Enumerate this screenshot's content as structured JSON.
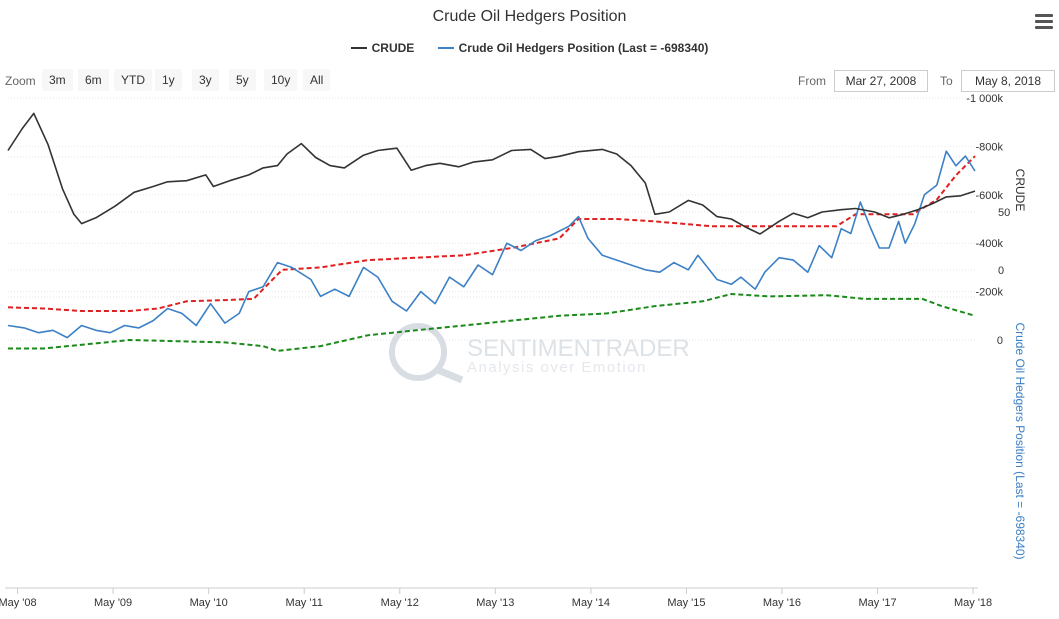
{
  "title": "Crude Oil Hedgers Position",
  "legend": [
    {
      "name": "CRUDE",
      "color": "#333333"
    },
    {
      "name": "Crude Oil Hedgers Position (Last = -698340)",
      "color": "#3c80c6"
    }
  ],
  "zoom": {
    "label": "Zoom",
    "buttons": [
      "3m",
      "6m",
      "YTD",
      "1y",
      "3y",
      "5y",
      "10y",
      "All"
    ]
  },
  "range": {
    "from_label": "From",
    "from_value": "Mar 27, 2008",
    "to_label": "To",
    "to_value": "May 8, 2018"
  },
  "watermark": {
    "brand": "SENTIMENTRADER",
    "tagline": "Analysis over Emotion"
  },
  "colors": {
    "crude": "#333333",
    "hedgers": "#3c80c6",
    "upper_band": "#1a8a1a",
    "lower_band": "#e02020",
    "grid": "#e6e6e6"
  },
  "chart_data": [
    {
      "type": "line",
      "series": [
        {
          "name": "CRUDE"
        }
      ],
      "ylabel": "CRUDE",
      "yticks": [
        0,
        50
      ],
      "ylim": [
        0,
        150
      ],
      "x_tick_labels": [
        "May '08",
        "May '09",
        "May '10",
        "May '11",
        "May '12",
        "May '13",
        "May '14",
        "May '15",
        "May '16",
        "May '17",
        "May '18"
      ],
      "x_range": [
        2008.23,
        2018.35
      ],
      "points": [
        [
          2008.23,
          103
        ],
        [
          2008.38,
          122
        ],
        [
          2008.5,
          135
        ],
        [
          2008.65,
          108
        ],
        [
          2008.8,
          70
        ],
        [
          2008.92,
          48
        ],
        [
          2009.0,
          40
        ],
        [
          2009.15,
          45
        ],
        [
          2009.35,
          55
        ],
        [
          2009.55,
          67
        ],
        [
          2009.75,
          72
        ],
        [
          2009.9,
          76
        ],
        [
          2010.1,
          77
        ],
        [
          2010.3,
          82
        ],
        [
          2010.38,
          72
        ],
        [
          2010.55,
          77
        ],
        [
          2010.75,
          82
        ],
        [
          2010.9,
          88
        ],
        [
          2011.05,
          90
        ],
        [
          2011.15,
          100
        ],
        [
          2011.3,
          109
        ],
        [
          2011.45,
          97
        ],
        [
          2011.6,
          90
        ],
        [
          2011.75,
          88
        ],
        [
          2011.95,
          99
        ],
        [
          2012.1,
          103
        ],
        [
          2012.3,
          105
        ],
        [
          2012.45,
          86
        ],
        [
          2012.6,
          90
        ],
        [
          2012.75,
          92
        ],
        [
          2012.95,
          89
        ],
        [
          2013.1,
          93
        ],
        [
          2013.3,
          95
        ],
        [
          2013.5,
          103
        ],
        [
          2013.7,
          104
        ],
        [
          2013.85,
          96
        ],
        [
          2014.0,
          98
        ],
        [
          2014.2,
          102
        ],
        [
          2014.45,
          104
        ],
        [
          2014.6,
          100
        ],
        [
          2014.75,
          90
        ],
        [
          2014.9,
          75
        ],
        [
          2015.0,
          48
        ],
        [
          2015.15,
          50
        ],
        [
          2015.35,
          60
        ],
        [
          2015.5,
          56
        ],
        [
          2015.65,
          46
        ],
        [
          2015.8,
          44
        ],
        [
          2015.95,
          37
        ],
        [
          2016.1,
          31
        ],
        [
          2016.3,
          42
        ],
        [
          2016.45,
          49
        ],
        [
          2016.6,
          45
        ],
        [
          2016.75,
          50
        ],
        [
          2016.95,
          52
        ],
        [
          2017.1,
          53
        ],
        [
          2017.3,
          50
        ],
        [
          2017.45,
          45
        ],
        [
          2017.6,
          48
        ],
        [
          2017.75,
          52
        ],
        [
          2017.9,
          57
        ],
        [
          2018.05,
          63
        ],
        [
          2018.2,
          64
        ],
        [
          2018.35,
          68
        ]
      ]
    },
    {
      "type": "line",
      "series": [
        {
          "name": "Crude Oil Hedgers Position (Last = -698340)"
        }
      ],
      "ylabel": "Crude Oil Hedgers Position (Last = -698340)",
      "yticks": [
        0,
        -200000,
        -400000,
        -600000,
        -800000,
        -1000000
      ],
      "ytick_labels": [
        "0",
        "-200k",
        "-400k",
        "-600k",
        "-800k",
        "-1 000k"
      ],
      "ylim": [
        -1000000,
        100000
      ],
      "x_range": [
        2008.23,
        2018.35
      ],
      "hedgers": [
        [
          2008.23,
          -60000
        ],
        [
          2008.4,
          -50000
        ],
        [
          2008.55,
          -30000
        ],
        [
          2008.7,
          -40000
        ],
        [
          2008.85,
          -10000
        ],
        [
          2009.0,
          -60000
        ],
        [
          2009.15,
          -40000
        ],
        [
          2009.3,
          -30000
        ],
        [
          2009.45,
          -60000
        ],
        [
          2009.6,
          -50000
        ],
        [
          2009.75,
          -80000
        ],
        [
          2009.9,
          -130000
        ],
        [
          2010.05,
          -110000
        ],
        [
          2010.2,
          -60000
        ],
        [
          2010.35,
          -150000
        ],
        [
          2010.5,
          -70000
        ],
        [
          2010.65,
          -110000
        ],
        [
          2010.75,
          -200000
        ],
        [
          2010.9,
          -220000
        ],
        [
          2011.05,
          -320000
        ],
        [
          2011.2,
          -300000
        ],
        [
          2011.4,
          -250000
        ],
        [
          2011.5,
          -180000
        ],
        [
          2011.65,
          -210000
        ],
        [
          2011.8,
          -180000
        ],
        [
          2011.95,
          -300000
        ],
        [
          2012.1,
          -260000
        ],
        [
          2012.25,
          -160000
        ],
        [
          2012.4,
          -120000
        ],
        [
          2012.55,
          -200000
        ],
        [
          2012.7,
          -150000
        ],
        [
          2012.85,
          -260000
        ],
        [
          2013.0,
          -220000
        ],
        [
          2013.15,
          -310000
        ],
        [
          2013.3,
          -270000
        ],
        [
          2013.45,
          -400000
        ],
        [
          2013.6,
          -370000
        ],
        [
          2013.75,
          -410000
        ],
        [
          2013.9,
          -430000
        ],
        [
          2014.1,
          -470000
        ],
        [
          2014.2,
          -510000
        ],
        [
          2014.3,
          -420000
        ],
        [
          2014.45,
          -350000
        ],
        [
          2014.6,
          -330000
        ],
        [
          2014.75,
          -310000
        ],
        [
          2014.9,
          -290000
        ],
        [
          2015.05,
          -280000
        ],
        [
          2015.2,
          -320000
        ],
        [
          2015.35,
          -290000
        ],
        [
          2015.45,
          -350000
        ],
        [
          2015.55,
          -300000
        ],
        [
          2015.65,
          -250000
        ],
        [
          2015.8,
          -230000
        ],
        [
          2015.9,
          -260000
        ],
        [
          2016.05,
          -210000
        ],
        [
          2016.15,
          -280000
        ],
        [
          2016.3,
          -340000
        ],
        [
          2016.45,
          -330000
        ],
        [
          2016.6,
          -280000
        ],
        [
          2016.72,
          -390000
        ],
        [
          2016.85,
          -340000
        ],
        [
          2016.95,
          -460000
        ],
        [
          2017.05,
          -440000
        ],
        [
          2017.15,
          -570000
        ],
        [
          2017.25,
          -470000
        ],
        [
          2017.35,
          -380000
        ],
        [
          2017.45,
          -380000
        ],
        [
          2017.55,
          -490000
        ],
        [
          2017.62,
          -400000
        ],
        [
          2017.72,
          -480000
        ],
        [
          2017.82,
          -600000
        ],
        [
          2017.95,
          -640000
        ],
        [
          2018.05,
          -780000
        ],
        [
          2018.15,
          -720000
        ],
        [
          2018.25,
          -760000
        ],
        [
          2018.35,
          -698340
        ]
      ],
      "upper_band": [
        [
          2008.23,
          35000
        ],
        [
          2008.6,
          35000
        ],
        [
          2009.0,
          20000
        ],
        [
          2009.5,
          0
        ],
        [
          2010.0,
          5000
        ],
        [
          2010.5,
          10000
        ],
        [
          2010.9,
          25000
        ],
        [
          2011.05,
          45000
        ],
        [
          2011.5,
          25000
        ],
        [
          2012.0,
          -20000
        ],
        [
          2012.5,
          -40000
        ],
        [
          2013.0,
          -60000
        ],
        [
          2013.5,
          -80000
        ],
        [
          2014.0,
          -100000
        ],
        [
          2014.5,
          -110000
        ],
        [
          2015.0,
          -140000
        ],
        [
          2015.5,
          -160000
        ],
        [
          2015.8,
          -190000
        ],
        [
          2016.2,
          -180000
        ],
        [
          2016.8,
          -185000
        ],
        [
          2017.2,
          -170000
        ],
        [
          2017.8,
          -170000
        ],
        [
          2018.0,
          -140000
        ],
        [
          2018.35,
          -100000
        ]
      ],
      "lower_band": [
        [
          2008.23,
          -135000
        ],
        [
          2008.6,
          -130000
        ],
        [
          2009.0,
          -120000
        ],
        [
          2009.5,
          -120000
        ],
        [
          2009.8,
          -130000
        ],
        [
          2010.1,
          -160000
        ],
        [
          2010.5,
          -165000
        ],
        [
          2010.8,
          -170000
        ],
        [
          2011.1,
          -290000
        ],
        [
          2011.5,
          -300000
        ],
        [
          2012.0,
          -330000
        ],
        [
          2012.5,
          -340000
        ],
        [
          2013.0,
          -350000
        ],
        [
          2013.5,
          -380000
        ],
        [
          2014.0,
          -420000
        ],
        [
          2014.2,
          -500000
        ],
        [
          2014.6,
          -500000
        ],
        [
          2015.0,
          -490000
        ],
        [
          2015.6,
          -470000
        ],
        [
          2016.2,
          -470000
        ],
        [
          2016.6,
          -470000
        ],
        [
          2016.9,
          -470000
        ],
        [
          2017.1,
          -520000
        ],
        [
          2017.4,
          -520000
        ],
        [
          2017.7,
          -520000
        ],
        [
          2017.95,
          -580000
        ],
        [
          2018.15,
          -680000
        ],
        [
          2018.35,
          -760000
        ]
      ]
    }
  ]
}
